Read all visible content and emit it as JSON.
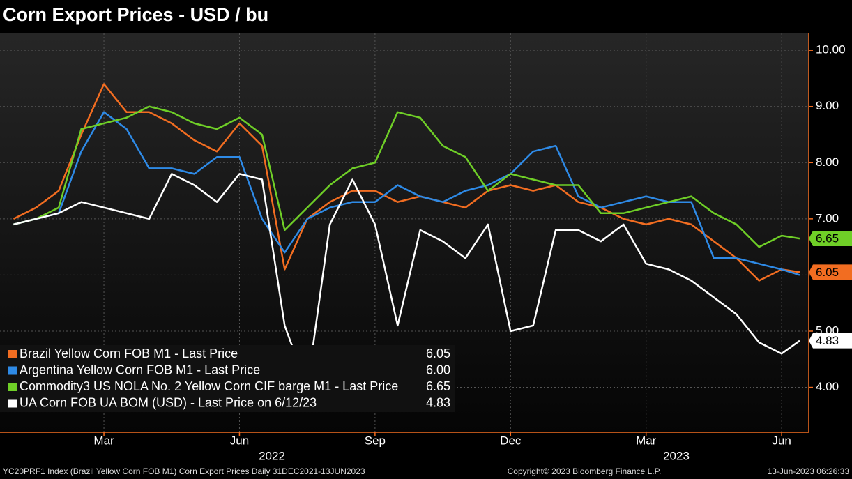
{
  "chart_data": {
    "type": "line",
    "title": "Corn Export Prices - USD / bu",
    "x": [
      0,
      0.5,
      1,
      1.5,
      2,
      2.5,
      3,
      3.5,
      4,
      4.5,
      5,
      5.5,
      6,
      6.5,
      7,
      7.5,
      8,
      8.5,
      9,
      9.5,
      10,
      10.5,
      11,
      11.5,
      12,
      12.5,
      13,
      13.5,
      14,
      14.5,
      15,
      15.5,
      16,
      16.5,
      17,
      17.4
    ],
    "xlim": [
      -0.3,
      17.6
    ],
    "xticks": [
      {
        "value": 2,
        "label": "Mar"
      },
      {
        "value": 5,
        "label": "Jun"
      },
      {
        "value": 8,
        "label": "Sep"
      },
      {
        "value": 11,
        "label": "Dec"
      },
      {
        "value": 14,
        "label": "Mar"
      },
      {
        "value": 17,
        "label": "Jun"
      }
    ],
    "x_year_labels": [
      "2022",
      "2023"
    ],
    "ylim": [
      3.2,
      10.3
    ],
    "yticks": [
      {
        "value": 4,
        "label": "4.00"
      },
      {
        "value": 5,
        "label": "5.00"
      },
      {
        "value": 6,
        "label": "6.00"
      },
      {
        "value": 7,
        "label": "7.00"
      },
      {
        "value": 8,
        "label": "8.00"
      },
      {
        "value": 9,
        "label": "9.00"
      },
      {
        "value": 10,
        "label": "10.00"
      }
    ],
    "grid": true,
    "legend": "lower-left",
    "series": [
      {
        "name": "Brazil Yellow Corn FOB M1 - Last Price",
        "color": "#f26d21",
        "legend_value": "6.05",
        "tag": true,
        "values": [
          7.0,
          7.2,
          7.5,
          8.5,
          9.4,
          8.9,
          8.9,
          8.7,
          8.4,
          8.2,
          8.7,
          8.3,
          6.1,
          7.0,
          7.3,
          7.5,
          7.5,
          7.3,
          7.4,
          7.3,
          7.2,
          7.5,
          7.6,
          7.5,
          7.6,
          7.3,
          7.2,
          7.0,
          6.9,
          7.0,
          6.9,
          6.6,
          6.3,
          5.9,
          6.1,
          6.05
        ]
      },
      {
        "name": "Argentina Yellow Corn FOB M1 - Last Price",
        "color": "#2e8ae6",
        "legend_value": "6.00",
        "tag": false,
        "values": [
          6.9,
          7.0,
          7.1,
          8.2,
          8.9,
          8.6,
          7.9,
          7.9,
          7.8,
          8.1,
          8.1,
          7.0,
          6.4,
          7.0,
          7.2,
          7.3,
          7.3,
          7.6,
          7.4,
          7.3,
          7.5,
          7.6,
          7.8,
          8.2,
          8.3,
          7.4,
          7.2,
          7.3,
          7.4,
          7.3,
          7.3,
          6.3,
          6.3,
          6.2,
          6.1,
          6.0
        ]
      },
      {
        "name": "Commodity3 US NOLA No. 2 Yellow Corn CIF barge M1 - Last Price",
        "color": "#6fcf27",
        "legend_value": "6.65",
        "tag": true,
        "values": [
          6.9,
          7.0,
          7.2,
          8.6,
          8.7,
          8.8,
          9.0,
          8.9,
          8.7,
          8.6,
          8.8,
          8.5,
          6.8,
          7.2,
          7.6,
          7.9,
          8.0,
          8.9,
          8.8,
          8.3,
          8.1,
          7.5,
          7.8,
          7.7,
          7.6,
          7.6,
          7.1,
          7.1,
          7.2,
          7.3,
          7.4,
          7.1,
          6.9,
          6.5,
          6.7,
          6.65
        ]
      },
      {
        "name": "UA Corn FOB UA BOM (USD) - Last Price on 6/12/23",
        "color": "#ffffff",
        "legend_value": "4.83",
        "tag": true,
        "values": [
          6.9,
          7.0,
          7.1,
          7.3,
          7.2,
          7.1,
          7.0,
          7.8,
          7.6,
          7.3,
          7.8,
          7.7,
          5.1,
          4.0,
          6.9,
          7.7,
          6.9,
          5.1,
          6.8,
          6.6,
          6.3,
          6.9,
          5.0,
          5.1,
          6.8,
          6.8,
          6.6,
          6.9,
          6.2,
          6.1,
          5.9,
          5.6,
          5.3,
          4.8,
          4.6,
          4.83
        ]
      }
    ],
    "footer": {
      "left": "YC20PRF1 Index (Brazil Yellow Corn FOB M1) Corn Export Prices  Daily 31DEC2021-13JUN2023",
      "center": "Copyright© 2023 Bloomberg Finance L.P.",
      "right": "13-Jun-2023 06:26:33"
    }
  }
}
